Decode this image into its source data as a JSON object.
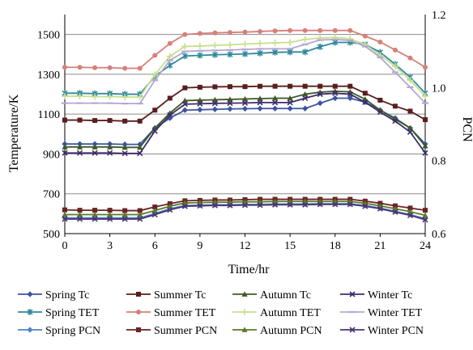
{
  "chart_data": {
    "type": "line",
    "title": "",
    "xlabel": "Time/hr",
    "ylabel": "Temperature/K",
    "ylabel_right": "PCN",
    "x_ticks": [
      0,
      3,
      6,
      9,
      12,
      15,
      18,
      21,
      24
    ],
    "xlim": [
      0,
      24
    ],
    "ylim": [
      500,
      1600
    ],
    "y_ticks": [
      500,
      700,
      900,
      1100,
      1300,
      1500
    ],
    "y2lim": [
      0.6,
      1.2
    ],
    "y2_ticks": [
      "0.6",
      "0.8",
      "1.0",
      "1.2"
    ],
    "grid": true,
    "legend_position": "bottom",
    "x": [
      0,
      1,
      2,
      3,
      4,
      5,
      6,
      7,
      8,
      9,
      10,
      11,
      12,
      13,
      14,
      15,
      16,
      17,
      18,
      19,
      20,
      21,
      22,
      23,
      24
    ],
    "series": [
      {
        "name": "Spring Tc",
        "axis": "left",
        "color": "#3a55a0",
        "marker": "diamond",
        "values": [
          950,
          950,
          950,
          950,
          948,
          948,
          1030,
          1080,
          1120,
          1122,
          1124,
          1126,
          1127,
          1128,
          1128,
          1128,
          1128,
          1155,
          1180,
          1180,
          1160,
          1120,
          1080,
          1030,
          950
        ]
      },
      {
        "name": "Summer Tc",
        "axis": "left",
        "color": "#5a1e1e",
        "marker": "square",
        "values": [
          1070,
          1070,
          1068,
          1068,
          1065,
          1065,
          1120,
          1180,
          1232,
          1235,
          1237,
          1238,
          1238,
          1240,
          1240,
          1240,
          1240,
          1240,
          1240,
          1240,
          1205,
          1170,
          1140,
          1115,
          1072
        ]
      },
      {
        "name": "Autumn Tc",
        "axis": "left",
        "color": "#3e5a23",
        "marker": "triangle",
        "values": [
          935,
          935,
          935,
          935,
          933,
          933,
          1030,
          1105,
          1168,
          1170,
          1172,
          1174,
          1176,
          1178,
          1180,
          1180,
          1200,
          1210,
          1215,
          1212,
          1175,
          1120,
          1075,
          1030,
          940
        ]
      },
      {
        "name": "Winter Tc",
        "axis": "left",
        "color": "#3d2b6b",
        "marker": "x",
        "values": [
          905,
          905,
          905,
          905,
          903,
          903,
          1015,
          1095,
          1150,
          1152,
          1154,
          1155,
          1156,
          1158,
          1158,
          1158,
          1180,
          1200,
          1205,
          1200,
          1160,
          1110,
          1065,
          1010,
          905
        ]
      },
      {
        "name": "Spring TET",
        "axis": "left",
        "color": "#2d8a9b",
        "marker": "star",
        "values": [
          1205,
          1205,
          1203,
          1203,
          1200,
          1200,
          1290,
          1345,
          1392,
          1395,
          1398,
          1400,
          1402,
          1406,
          1410,
          1412,
          1412,
          1438,
          1460,
          1460,
          1450,
          1410,
          1350,
          1285,
          1205
        ]
      },
      {
        "name": "Summer TET",
        "axis": "left",
        "color": "#d6807a",
        "marker": "circle",
        "values": [
          1335,
          1335,
          1333,
          1333,
          1330,
          1330,
          1395,
          1455,
          1500,
          1505,
          1508,
          1510,
          1512,
          1515,
          1518,
          1520,
          1520,
          1520,
          1520,
          1520,
          1492,
          1462,
          1422,
          1382,
          1335
        ]
      },
      {
        "name": "Autumn TET",
        "axis": "left",
        "color": "#c6e08f",
        "marker": "plus",
        "values": [
          1190,
          1190,
          1188,
          1188,
          1186,
          1186,
          1298,
          1390,
          1440,
          1442,
          1445,
          1448,
          1452,
          1455,
          1458,
          1460,
          1475,
          1482,
          1485,
          1478,
          1450,
          1395,
          1340,
          1270,
          1190
        ]
      },
      {
        "name": "Winter TET",
        "axis": "left",
        "color": "#b6a7d2",
        "marker": "dash",
        "values": [
          1155,
          1155,
          1155,
          1155,
          1153,
          1153,
          1270,
          1370,
          1415,
          1418,
          1420,
          1422,
          1425,
          1428,
          1428,
          1428,
          1450,
          1472,
          1475,
          1470,
          1440,
          1385,
          1310,
          1235,
          1155
        ]
      },
      {
        "name": "Spring PCN",
        "axis": "right",
        "color": "#4e86c6",
        "marker": "diamond",
        "values": [
          0.643,
          0.643,
          0.643,
          0.643,
          0.643,
          0.643,
          0.655,
          0.668,
          0.677,
          0.678,
          0.679,
          0.679,
          0.68,
          0.68,
          0.681,
          0.681,
          0.681,
          0.682,
          0.682,
          0.682,
          0.677,
          0.67,
          0.661,
          0.652,
          0.641
        ]
      },
      {
        "name": "Summer PCN",
        "axis": "right",
        "color": "#6a2323",
        "marker": "square",
        "values": [
          0.665,
          0.664,
          0.664,
          0.664,
          0.663,
          0.663,
          0.673,
          0.682,
          0.69,
          0.691,
          0.692,
          0.692,
          0.693,
          0.694,
          0.694,
          0.694,
          0.694,
          0.694,
          0.694,
          0.694,
          0.689,
          0.683,
          0.676,
          0.67,
          0.664
        ]
      },
      {
        "name": "Autumn PCN",
        "axis": "right",
        "color": "#5a7a2b",
        "marker": "triangle",
        "values": [
          0.652,
          0.652,
          0.652,
          0.652,
          0.652,
          0.652,
          0.663,
          0.675,
          0.684,
          0.685,
          0.686,
          0.686,
          0.687,
          0.687,
          0.688,
          0.688,
          0.688,
          0.688,
          0.688,
          0.688,
          0.683,
          0.676,
          0.668,
          0.66,
          0.65
        ]
      },
      {
        "name": "Winter PCN",
        "axis": "right",
        "color": "#4a3473",
        "marker": "x",
        "values": [
          0.64,
          0.64,
          0.64,
          0.64,
          0.64,
          0.64,
          0.652,
          0.665,
          0.675,
          0.676,
          0.677,
          0.677,
          0.678,
          0.678,
          0.679,
          0.679,
          0.679,
          0.68,
          0.68,
          0.68,
          0.675,
          0.668,
          0.659,
          0.65,
          0.638
        ]
      }
    ],
    "legend_layout": [
      [
        "Spring Tc",
        "Summer Tc",
        "Autumn Tc",
        "Winter Tc"
      ],
      [
        "Spring TET",
        "Summer TET",
        "Autumn TET",
        "Winter TET"
      ],
      [
        "Spring PCN",
        "Summer PCN",
        "Autumn PCN",
        "Winter PCN"
      ]
    ]
  }
}
